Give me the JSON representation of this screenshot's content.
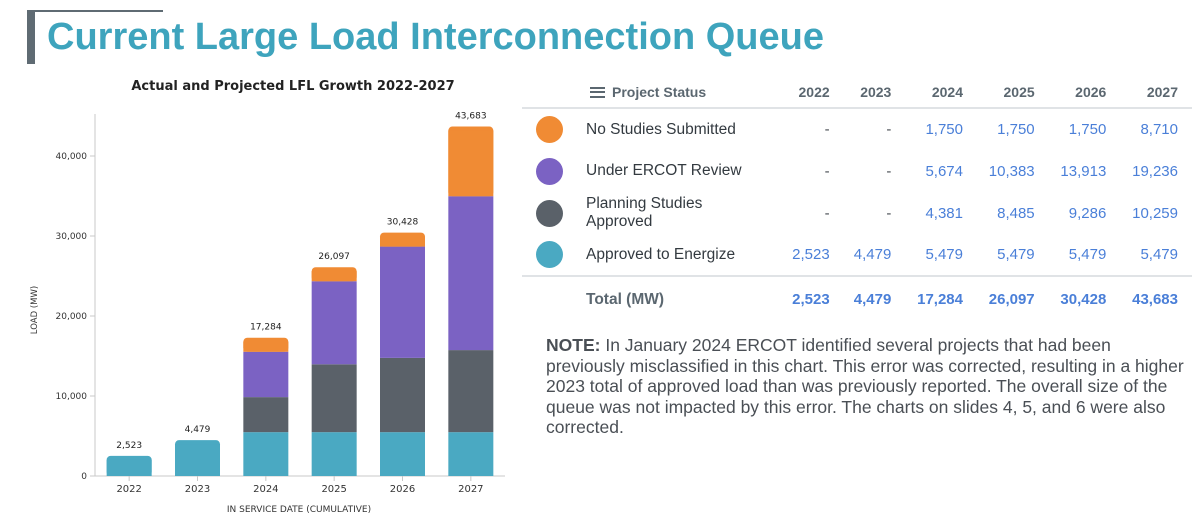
{
  "page": {
    "title": "Current Large Load Interconnection Queue"
  },
  "chart_data": {
    "type": "bar",
    "stacked": true,
    "title": "Actual and Projected LFL Growth 2022-2027",
    "xlabel": "IN SERVICE DATE (CUMULATIVE)",
    "ylabel": "LOAD (MW)",
    "ylim": [
      0,
      45000
    ],
    "yticks": [
      0,
      10000,
      20000,
      30000,
      40000
    ],
    "ytick_labels": [
      "0",
      "10,000",
      "20,000",
      "30,000",
      "40,000"
    ],
    "categories": [
      "2022",
      "2023",
      "2024",
      "2025",
      "2026",
      "2027"
    ],
    "series": [
      {
        "name": "Approved to Energize",
        "color": "#4aa9c2",
        "values": [
          2523,
          4479,
          5479,
          5479,
          5479,
          5479
        ]
      },
      {
        "name": "Planning Studies Approved",
        "color": "#5a6169",
        "values": [
          0,
          0,
          4381,
          8485,
          9286,
          10259
        ]
      },
      {
        "name": "Under ERCOT Review",
        "color": "#7b62c3",
        "values": [
          0,
          0,
          5674,
          10383,
          13913,
          19236
        ]
      },
      {
        "name": "No Studies Submitted",
        "color": "#f08b34",
        "values": [
          0,
          0,
          1750,
          1750,
          1750,
          8710
        ]
      }
    ],
    "totals": [
      2523,
      4479,
      17284,
      26097,
      30428,
      43683
    ],
    "total_labels": [
      "2,523",
      "4,479",
      "17,284",
      "26,097",
      "30,428",
      "43,683"
    ]
  },
  "table": {
    "header_status": "Project Status",
    "years": [
      "2022",
      "2023",
      "2024",
      "2025",
      "2026",
      "2027"
    ],
    "rows": [
      {
        "name": "No Studies Submitted",
        "color": "#f08b34",
        "values": [
          "-",
          "-",
          "1,750",
          "1,750",
          "1,750",
          "8,710"
        ]
      },
      {
        "name": "Under ERCOT Review",
        "color": "#7b62c3",
        "values": [
          "-",
          "-",
          "5,674",
          "10,383",
          "13,913",
          "19,236"
        ]
      },
      {
        "name": "Planning Studies Approved",
        "color": "#5a6169",
        "values": [
          "-",
          "-",
          "4,381",
          "8,485",
          "9,286",
          "10,259"
        ]
      },
      {
        "name": "Approved to Energize",
        "color": "#4aa9c2",
        "values": [
          "2,523",
          "4,479",
          "5,479",
          "5,479",
          "5,479",
          "5,479"
        ]
      }
    ],
    "total": {
      "name": "Total (MW)",
      "values": [
        "2,523",
        "4,479",
        "17,284",
        "26,097",
        "30,428",
        "43,683"
      ]
    }
  },
  "note": {
    "label": "NOTE:",
    "text": "In January 2024 ERCOT identified several projects that had been previously misclassified in this chart. This error was corrected, resulting in a higher 2023 total of approved load than was previously reported. The overall size of the queue was not impacted by this error. The charts on slides 4, 5, and 6 were also corrected."
  }
}
